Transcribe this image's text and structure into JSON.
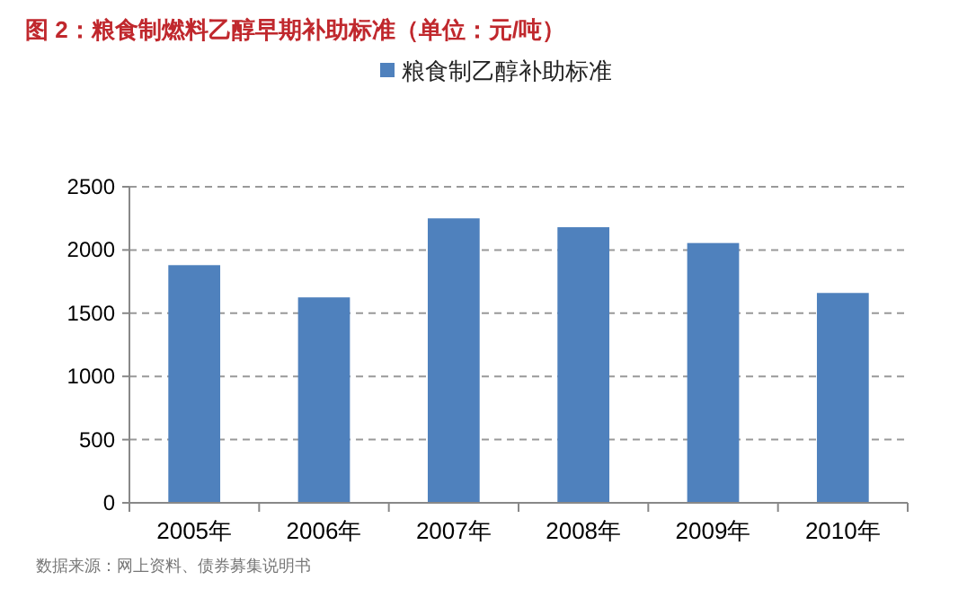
{
  "chart_data": {
    "type": "bar",
    "title": "图 2：粮食制燃料乙醇早期补助标准（单位：元/吨）",
    "categories": [
      "2005年",
      "2006年",
      "2007年",
      "2008年",
      "2009年",
      "2010年"
    ],
    "series": [
      {
        "name": "粮食制乙醇补助标准",
        "color": "#4f81bd",
        "values": [
          1880,
          1625,
          2250,
          2180,
          2055,
          1660
        ]
      }
    ],
    "ylim": [
      0,
      2500
    ],
    "yticks": [
      0,
      500,
      1000,
      1500,
      2000,
      2500
    ],
    "grid": "y",
    "legend": "top",
    "annotations": [
      "数据来源：网上资料、债券募集说明书"
    ]
  }
}
